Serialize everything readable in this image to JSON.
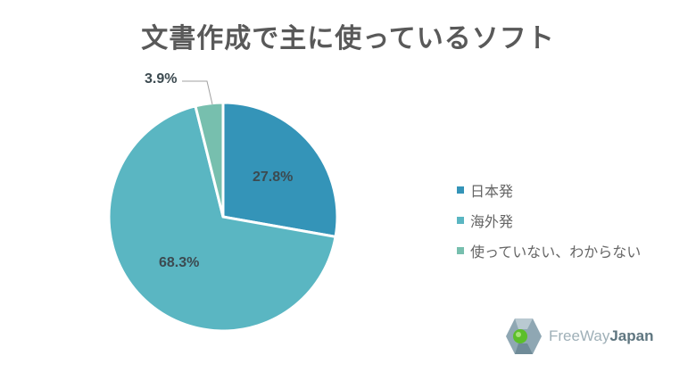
{
  "title": "文書作成で主に使っているソフト",
  "chart_data": {
    "type": "pie",
    "title": "文書作成で主に使っているソフト",
    "categories": [
      "日本発",
      "海外発",
      "使っていない、わからない"
    ],
    "values": [
      27.8,
      68.3,
      3.9
    ],
    "unit": "%",
    "colors": [
      "#3494b8",
      "#5ab6c2",
      "#77bfae"
    ],
    "labels": [
      "27.8%",
      "68.3%",
      "3.9%"
    ],
    "legend_position": "right",
    "start_angle": "12 o'clock, clockwise"
  },
  "legend": {
    "items": [
      {
        "label": "日本発",
        "color": "#3494b8"
      },
      {
        "label": "海外発",
        "color": "#5ab6c2"
      },
      {
        "label": "使っていない、わからない",
        "color": "#77bfae"
      }
    ]
  },
  "slice_labels": {
    "japan": "27.8%",
    "overseas": "68.3%",
    "none": "3.9%"
  },
  "logo": {
    "free": "FreeWay",
    "japan": "Japan"
  }
}
